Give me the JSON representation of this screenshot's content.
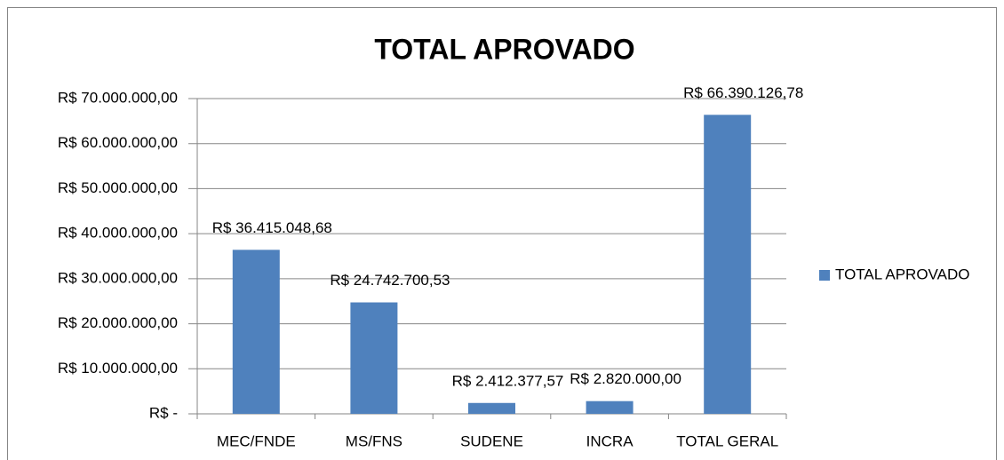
{
  "chart_data": {
    "type": "bar",
    "title": "TOTAL APROVADO",
    "categories": [
      "MEC/FNDE",
      "MS/FNS",
      "SUDENE",
      "INCRA",
      "TOTAL GERAL"
    ],
    "series": [
      {
        "name": "TOTAL APROVADO",
        "color": "#4f81bd",
        "values": [
          36415048.68,
          24742700.53,
          2412377.57,
          2820000,
          66390126.78
        ],
        "value_labels": [
          "R$ 36.415.048,68",
          "R$ 24.742.700,53",
          "R$ 2.412.377,57",
          "R$ 2.820.000,00",
          "R$ 66.390.126,78"
        ]
      }
    ],
    "ylim": [
      0,
      70000000
    ],
    "yticks": [
      {
        "value": 0,
        "label": "R$ -"
      },
      {
        "value": 10000000,
        "label": "R$ 10.000.000,00"
      },
      {
        "value": 20000000,
        "label": "R$ 20.000.000,00"
      },
      {
        "value": 30000000,
        "label": "R$ 30.000.000,00"
      },
      {
        "value": 40000000,
        "label": "R$ 40.000.000,00"
      },
      {
        "value": 50000000,
        "label": "R$ 50.000.000,00"
      },
      {
        "value": 60000000,
        "label": "R$ 60.000.000,00"
      },
      {
        "value": 70000000,
        "label": "R$ 70.000.000,00"
      }
    ],
    "grid": true,
    "legend": "right"
  }
}
